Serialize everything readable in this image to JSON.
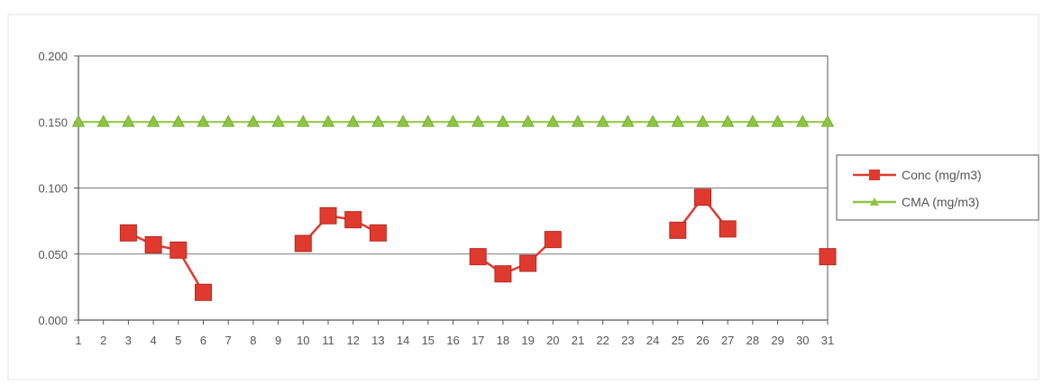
{
  "chart_data": {
    "type": "line",
    "title": "",
    "xlabel": "",
    "ylabel": "",
    "categories": [
      "1",
      "2",
      "3",
      "4",
      "5",
      "6",
      "7",
      "8",
      "9",
      "10",
      "11",
      "12",
      "13",
      "14",
      "15",
      "16",
      "17",
      "18",
      "19",
      "20",
      "21",
      "22",
      "23",
      "24",
      "25",
      "26",
      "27",
      "28",
      "29",
      "30",
      "31"
    ],
    "ylim": [
      0,
      0.2
    ],
    "yticks": [
      "0.000",
      "0.050",
      "0.100",
      "0.150",
      "0.200"
    ],
    "grid": true,
    "legend_position": "right",
    "series": [
      {
        "name": "Conc (mg/m3)",
        "color": "#e03a2f",
        "marker": "square",
        "values": [
          null,
          null,
          0.066,
          0.057,
          0.053,
          0.021,
          null,
          null,
          null,
          0.058,
          0.079,
          0.076,
          0.066,
          null,
          null,
          null,
          0.048,
          0.035,
          0.043,
          0.061,
          null,
          null,
          null,
          null,
          0.068,
          0.093,
          0.069,
          null,
          null,
          null,
          0.048
        ]
      },
      {
        "name": "CMA (mg/m3)",
        "color": "#8dc63f",
        "marker": "triangle",
        "values": [
          0.15,
          0.15,
          0.15,
          0.15,
          0.15,
          0.15,
          0.15,
          0.15,
          0.15,
          0.15,
          0.15,
          0.15,
          0.15,
          0.15,
          0.15,
          0.15,
          0.15,
          0.15,
          0.15,
          0.15,
          0.15,
          0.15,
          0.15,
          0.15,
          0.15,
          0.15,
          0.15,
          0.15,
          0.15,
          0.15,
          0.15
        ]
      }
    ]
  }
}
